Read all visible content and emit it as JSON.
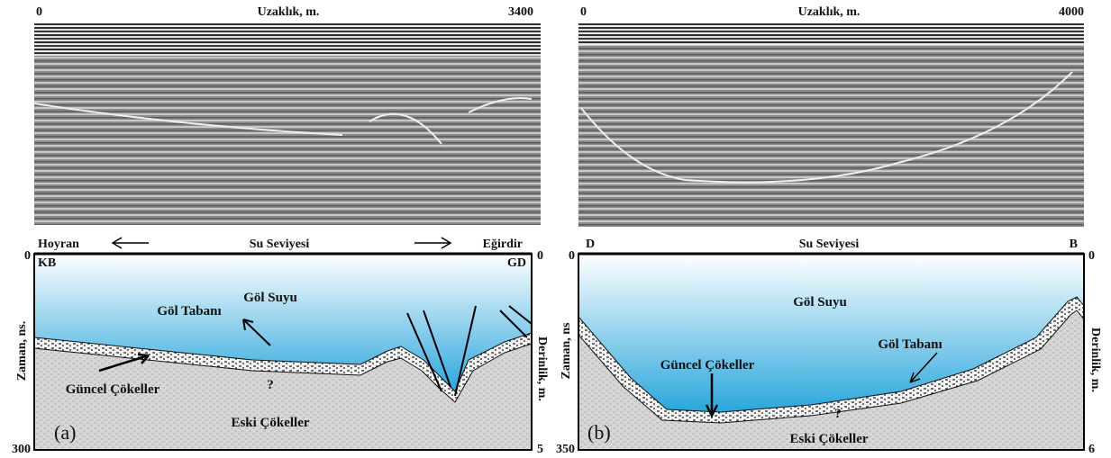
{
  "panels": [
    {
      "label": "(a)",
      "profile": {
        "distance_start": 0,
        "axis_title": "Uzaklık, m.",
        "distance_end": 3400
      },
      "section": {
        "left_end": "Hoyran",
        "water_level": "Su Seviyesi",
        "right_end": "Eğirdir",
        "left_direction": "KB",
        "right_direction": "GD",
        "left_axis_title": "Zaman, ns.",
        "left_axis_top": 0,
        "left_axis_bottom": 300,
        "right_axis_title": "Derinlik, m.",
        "right_axis_top": 0,
        "right_axis_bottom": 5,
        "labels": {
          "water": "Göl Suyu",
          "lake_bed": "Göl Tabanı",
          "recent_sediments": "Güncel Çökeller",
          "old_sediments": "Eski Çökeller",
          "uncertain": "?"
        }
      }
    },
    {
      "label": "(b)",
      "profile": {
        "distance_start": 0,
        "axis_title": "Uzaklık, m.",
        "distance_end": 4000
      },
      "section": {
        "left_end": "D",
        "water_level": "Su Seviyesi",
        "right_end": "B",
        "left_axis_title": "Zaman, ns",
        "left_axis_top": 0,
        "left_axis_bottom": 350,
        "right_axis_title": "Derinlik, m.",
        "right_axis_top": 0,
        "right_axis_bottom": 6,
        "labels": {
          "water": "Göl Suyu",
          "lake_bed": "Göl Tabanı",
          "recent_sediments": "Güncel Çökeller",
          "old_sediments": "Eski Çökeller",
          "uncertain": "?"
        }
      }
    }
  ]
}
